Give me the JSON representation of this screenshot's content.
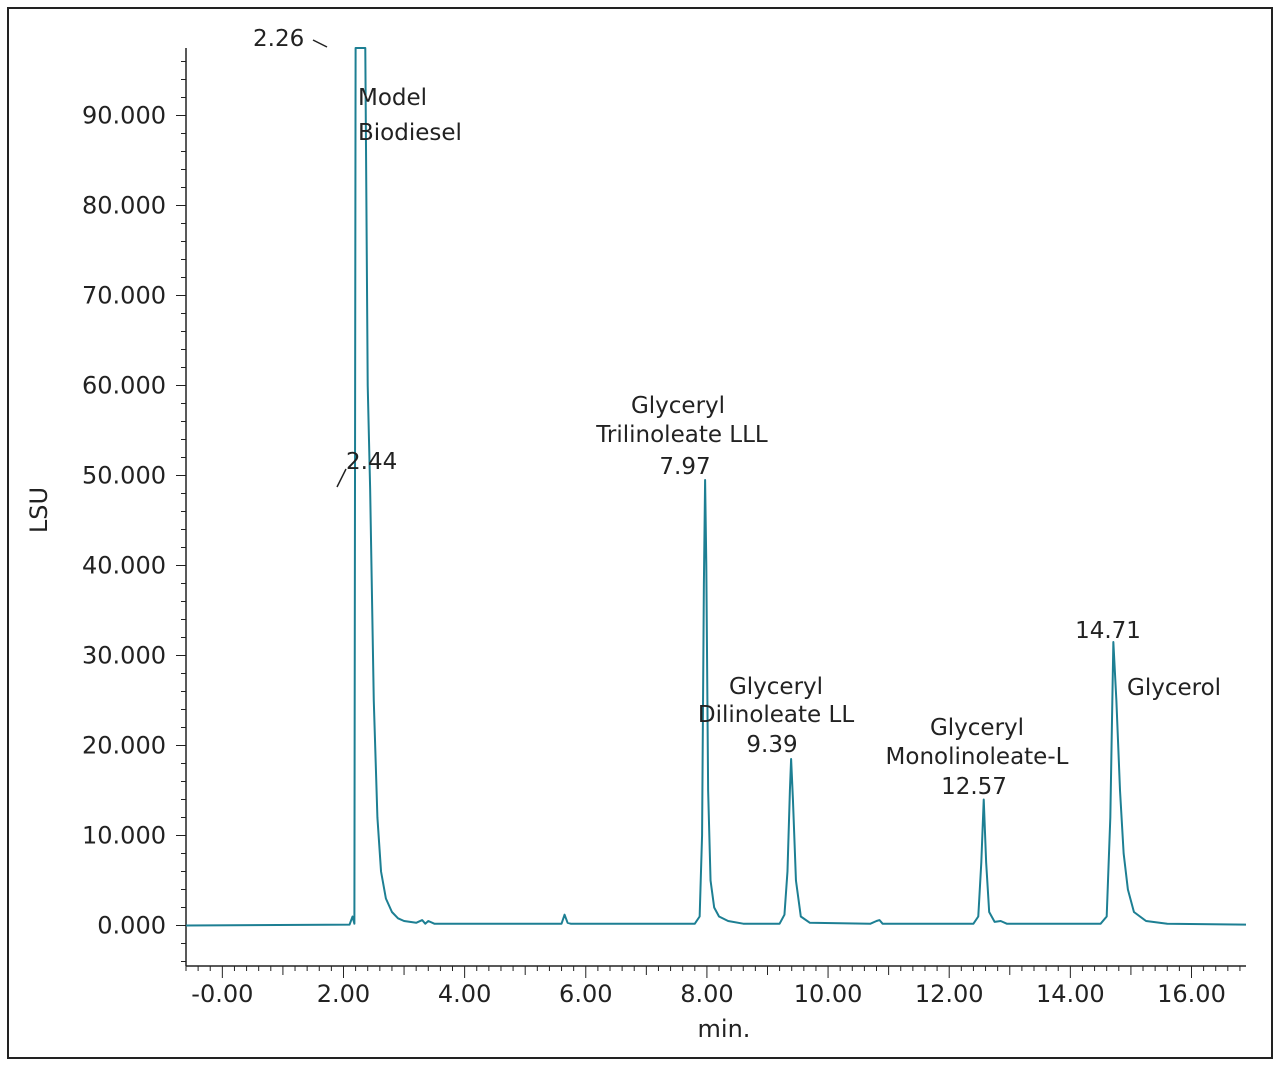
{
  "chart_data": {
    "type": "line",
    "title": "",
    "xlabel": "min.",
    "ylabel": "LSU",
    "xlim": [
      -0.6,
      16.9
    ],
    "ylim": [
      -4.5,
      97.5
    ],
    "xticks": [
      0,
      2,
      4,
      6,
      8,
      10,
      12,
      14,
      16
    ],
    "xtick_labels": [
      "-0.00",
      "2.00",
      "4.00",
      "6.00",
      "8.00",
      "10.00",
      "12.00",
      "14.00",
      "16.00"
    ],
    "yticks": [
      0,
      10,
      20,
      30,
      40,
      50,
      60,
      70,
      80,
      90
    ],
    "ytick_labels": [
      "0.000",
      "10.000",
      "20.000",
      "30.000",
      "40.000",
      "50.000",
      "60.000",
      "70.000",
      "80.000",
      "90.000"
    ],
    "grid": false,
    "legend": "none",
    "line_color": "#1d7f93",
    "series": [
      {
        "x": [
          -0.6,
          2.1,
          2.15,
          2.18,
          2.2,
          2.22,
          2.24,
          2.26,
          2.3,
          2.36,
          2.4,
          2.44,
          2.5,
          2.56,
          2.62,
          2.7,
          2.8,
          2.9,
          3.0,
          3.2,
          3.3,
          3.35,
          3.4,
          3.5,
          5.6,
          5.65,
          5.7,
          5.75,
          7.8,
          7.88,
          7.92,
          7.95,
          7.97,
          7.99,
          8.02,
          8.06,
          8.12,
          8.2,
          8.35,
          8.6,
          9.2,
          9.28,
          9.33,
          9.37,
          9.39,
          9.42,
          9.47,
          9.55,
          9.7,
          10.7,
          10.8,
          10.85,
          10.9,
          12.4,
          12.48,
          12.53,
          12.57,
          12.61,
          12.66,
          12.75,
          12.85,
          12.95,
          14.5,
          14.6,
          14.66,
          14.71,
          14.76,
          14.82,
          14.88,
          14.95,
          15.05,
          15.25,
          15.6,
          16.9
        ],
        "values": [
          0,
          0.1,
          1.0,
          0.2,
          97.5,
          97.5,
          97.5,
          97.5,
          97.5,
          97.5,
          60.0,
          48.5,
          25.0,
          12.0,
          6.0,
          3.0,
          1.5,
          0.8,
          0.5,
          0.3,
          0.6,
          0.2,
          0.5,
          0.2,
          0.2,
          1.2,
          0.3,
          0.2,
          0.2,
          1.0,
          10.0,
          38.0,
          49.5,
          40.0,
          15.0,
          5.0,
          2.0,
          1.0,
          0.5,
          0.2,
          0.2,
          1.2,
          6.0,
          15.0,
          18.5,
          14.0,
          5.0,
          1.0,
          0.3,
          0.2,
          0.5,
          0.6,
          0.2,
          0.2,
          1.0,
          7.0,
          14.0,
          7.0,
          1.5,
          0.4,
          0.5,
          0.2,
          0.2,
          1.0,
          12.0,
          31.5,
          25.0,
          15.0,
          8.0,
          4.0,
          1.5,
          0.5,
          0.2,
          0.1
        ]
      }
    ],
    "peaks": [
      {
        "label": "2.26",
        "name_lines": [],
        "x": 2.26,
        "y": 97.5
      },
      {
        "label": "2.44",
        "name_lines": [
          "Model",
          "Biodiesel"
        ],
        "x": 2.44,
        "y": 48.5
      },
      {
        "label": "7.97",
        "name_lines": [
          "Glyceryl",
          "Trilinoleate LLL"
        ],
        "x": 7.97,
        "y": 49.5
      },
      {
        "label": "9.39",
        "name_lines": [
          "Glyceryl",
          "Dilinoleate LL"
        ],
        "x": 9.39,
        "y": 18.5
      },
      {
        "label": "12.57",
        "name_lines": [
          "Glyceryl",
          "Monolinoleate-L"
        ],
        "x": 12.57,
        "y": 14.0
      },
      {
        "label": "14.71",
        "name_lines": [
          "Glycerol"
        ],
        "x": 14.71,
        "y": 31.5
      }
    ]
  }
}
